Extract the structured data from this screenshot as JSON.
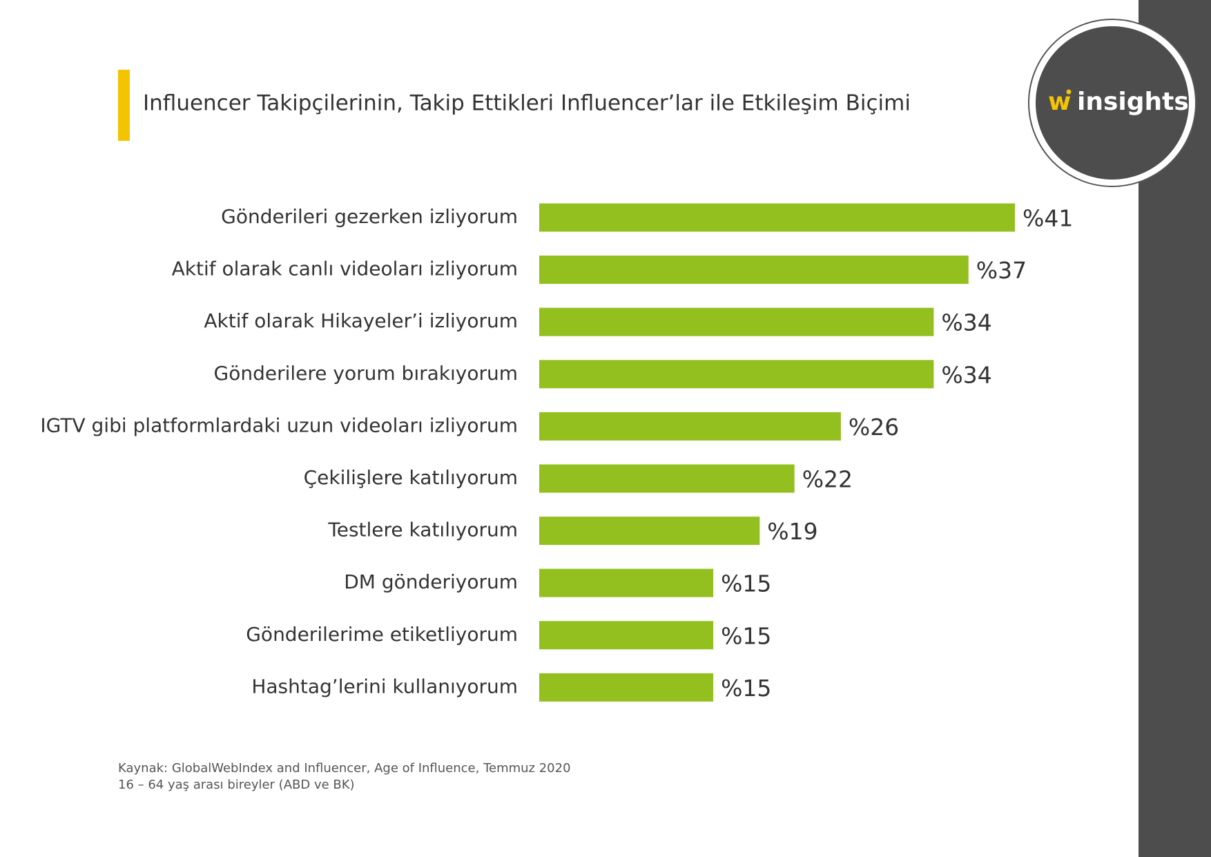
{
  "logo": {
    "mark": "w",
    "text": "insights"
  },
  "chart_data": {
    "type": "bar",
    "orientation": "horizontal",
    "title": "Influencer Takipçilerinin, Takip Ettikleri Influencer’lar ile Etkileşim Biçimi",
    "categories": [
      "Gönderileri gezerken izliyorum",
      "Aktif olarak canlı videoları izliyorum",
      "Aktif olarak Hikayeler’i izliyorum",
      "Gönderilere yorum bırakıyorum",
      "IGTV gibi platformlardaki uzun videoları izliyorum",
      "Çekilişlere katılıyorum",
      "Testlere katılıyorum",
      "DM gönderiyorum",
      "Gönderilerime etiketliyorum",
      "Hashtag’lerini kullanıyorum"
    ],
    "values": [
      41,
      37,
      34,
      34,
      26,
      22,
      19,
      15,
      15,
      15
    ],
    "value_labels": [
      "%41",
      "%37",
      "%34",
      "%34",
      "%26",
      "%22",
      "%19",
      "%15",
      "%15",
      "%15"
    ],
    "color": "#93c01f",
    "notes": [
      "Kaynak: GlobalWebIndex and Influencer, Age of Influence, Temmuz 2020",
      "16 – 64 yaş arası bireyler (ABD ve BK)"
    ]
  }
}
